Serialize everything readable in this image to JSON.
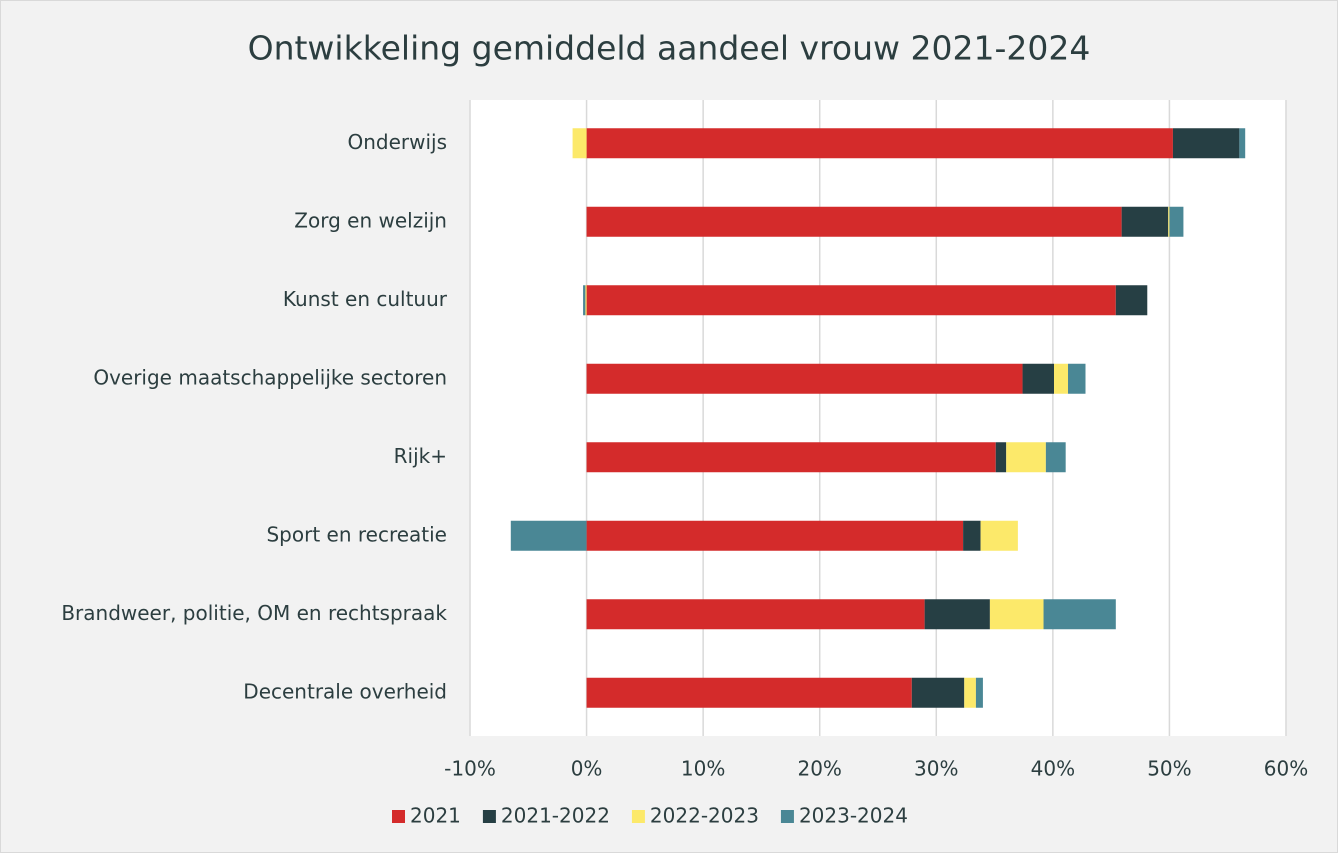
{
  "chart_data": {
    "type": "stacked-barh",
    "title": "Ontwikkeling gemiddeld aandeel vrouw 2021-2024",
    "categories": [
      "Onderwijs",
      "Zorg en welzijn",
      "Kunst en cultuur",
      "Overige maatschappelijke sectoren",
      "Rijk+",
      "Sport en recreatie",
      "Brandweer, politie, OM en rechtspraak",
      "Decentrale overheid"
    ],
    "series": [
      {
        "name": "2021",
        "color": "#d42b2b",
        "values": [
          50.3,
          45.9,
          45.4,
          37.4,
          35.1,
          32.3,
          29.0,
          27.9
        ]
      },
      {
        "name": "2021-2022",
        "color": "#263f44",
        "values": [
          5.7,
          4.0,
          2.7,
          2.7,
          0.9,
          1.5,
          5.6,
          4.5
        ]
      },
      {
        "name": "2022-2023",
        "color": "#fce96a",
        "values": [
          -1.2,
          0.1,
          -0.1,
          1.2,
          3.4,
          3.2,
          4.6,
          1.0
        ]
      },
      {
        "name": "2023-2024",
        "color": "#4a8795",
        "values": [
          0.5,
          1.2,
          -0.2,
          1.5,
          1.7,
          -6.5,
          6.2,
          0.6
        ]
      }
    ],
    "xlim": [
      -10,
      60
    ],
    "xticks": [
      {
        "value": -10,
        "label": "-10%"
      },
      {
        "value": 0,
        "label": "0%"
      },
      {
        "value": 10,
        "label": "10%"
      },
      {
        "value": 20,
        "label": "20%"
      },
      {
        "value": 30,
        "label": "30%"
      },
      {
        "value": 40,
        "label": "40%"
      },
      {
        "value": 50,
        "label": "50%"
      },
      {
        "value": 60,
        "label": "60%"
      }
    ],
    "grid": true,
    "legend": "bottom"
  }
}
